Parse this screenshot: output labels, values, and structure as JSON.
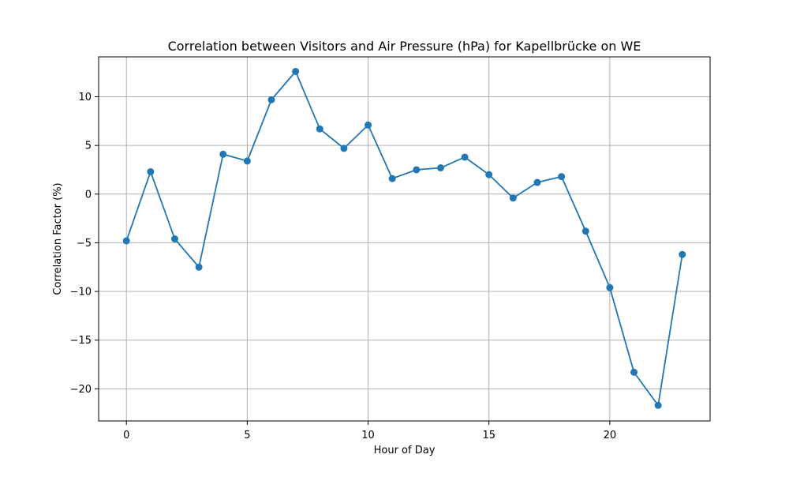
{
  "chart_data": {
    "type": "line",
    "title": "Correlation between Visitors and Air Pressure (hPa) for Kapellbrücke on WE",
    "xlabel": "Hour of Day",
    "ylabel": "Correlation Factor (%)",
    "xlim": [
      -1.15,
      24.15
    ],
    "ylim": [
      -23.3,
      14.1
    ],
    "xticks": [
      0,
      5,
      10,
      15,
      20
    ],
    "yticks": [
      -20,
      -15,
      -10,
      -5,
      0,
      5,
      10
    ],
    "xtick_labels": [
      "0",
      "5",
      "10",
      "15",
      "20"
    ],
    "ytick_labels": [
      "−20",
      "−15",
      "−10",
      "−5",
      "0",
      "5",
      "10"
    ],
    "grid": true,
    "series": [
      {
        "color": "#1f77b4",
        "marker": "circle",
        "x": [
          0,
          1,
          2,
          3,
          4,
          5,
          6,
          7,
          8,
          9,
          10,
          11,
          12,
          13,
          14,
          15,
          16,
          17,
          18,
          19,
          20,
          21,
          22,
          23
        ],
        "values": [
          -4.8,
          2.3,
          -4.6,
          -7.5,
          4.1,
          3.4,
          9.7,
          12.6,
          6.7,
          4.7,
          7.1,
          1.6,
          2.5,
          2.7,
          3.8,
          2.0,
          -0.4,
          1.2,
          1.8,
          -3.8,
          -9.6,
          -18.3,
          -21.7,
          -6.2
        ]
      }
    ]
  }
}
